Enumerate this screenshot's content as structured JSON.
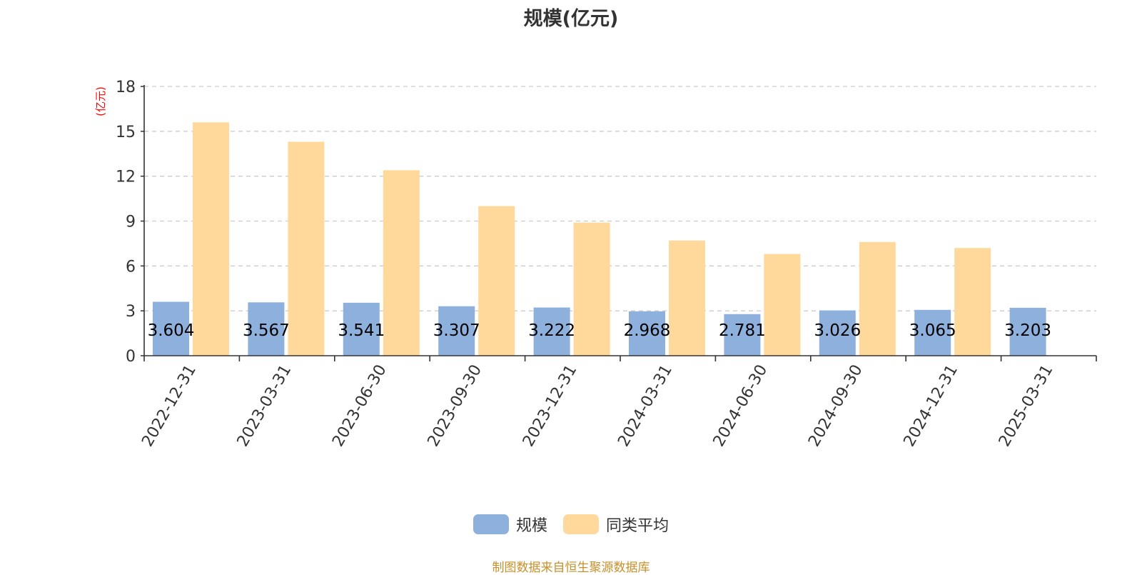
{
  "chart_data": {
    "type": "bar",
    "title": "规模(亿元)",
    "ylabel": "(亿元)",
    "xlabel": "",
    "ylim": [
      0,
      18
    ],
    "yticks": [
      0,
      3,
      6,
      9,
      12,
      15,
      18
    ],
    "grid": true,
    "legend_position": "bottom-center",
    "categories": [
      "2022-12-31",
      "2023-03-31",
      "2023-06-30",
      "2023-09-30",
      "2023-12-31",
      "2024-03-31",
      "2024-06-30",
      "2024-09-30",
      "2024-12-31",
      "2025-03-31"
    ],
    "series": [
      {
        "name": "规模",
        "color": "#8eb0dc",
        "values": [
          3.604,
          3.567,
          3.541,
          3.307,
          3.222,
          2.968,
          2.781,
          3.026,
          3.065,
          3.203
        ],
        "labels": [
          "3.604",
          "3.567",
          "3.541",
          "3.307",
          "3.222",
          "2.968",
          "2.781",
          "3.026",
          "3.065",
          "3.203"
        ]
      },
      {
        "name": "同类平均",
        "color": "#fed99b",
        "values": [
          15.6,
          14.3,
          12.4,
          10.0,
          8.9,
          7.7,
          6.8,
          7.6,
          7.2,
          null
        ]
      }
    ],
    "source_note": "制图数据来自恒生聚源数据库",
    "colors": {
      "axis": "#333333",
      "grid": "#cccccc",
      "ylabel": "#ff0000",
      "source": "#c8902a"
    }
  }
}
